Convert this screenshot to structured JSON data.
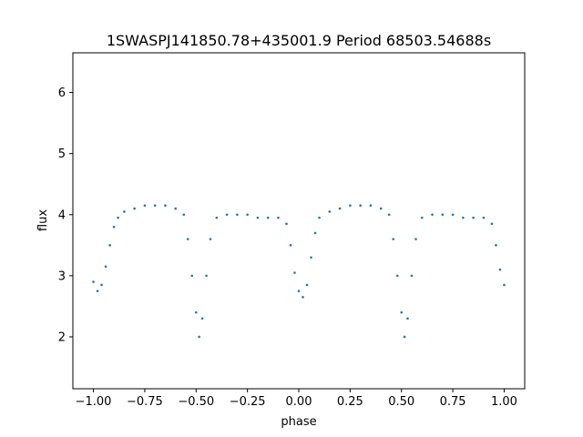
{
  "chart_data": {
    "type": "scatter",
    "title": "1SWASPJ141850.78+435001.9 Period 68503.54688s",
    "xlabel": "phase",
    "ylabel": "flux",
    "xlim": [
      -1.1,
      1.1
    ],
    "ylim": [
      1.15,
      6.65
    ],
    "x_ticks": [
      -1.0,
      -0.75,
      -0.5,
      -0.25,
      0.0,
      0.25,
      0.5,
      0.75,
      1.0
    ],
    "x_tick_labels": [
      "−1.00",
      "−0.75",
      "−0.50",
      "−0.25",
      "0.00",
      "0.25",
      "0.50",
      "0.75",
      "1.00"
    ],
    "y_ticks": [
      2,
      3,
      4,
      5,
      6
    ],
    "y_tick_labels": [
      "2",
      "3",
      "4",
      "5",
      "6"
    ],
    "grid": false,
    "legend": "none",
    "marker_color": "#1f77b4",
    "series": [
      {
        "points": [
          [
            -1.0,
            2.9
          ],
          [
            -0.98,
            2.75
          ],
          [
            -0.96,
            2.85
          ],
          [
            -0.94,
            3.15
          ],
          [
            -0.92,
            3.5
          ],
          [
            -0.9,
            3.8
          ],
          [
            -0.88,
            3.95
          ],
          [
            -0.85,
            4.05
          ],
          [
            -0.8,
            4.1
          ],
          [
            -0.75,
            4.15
          ],
          [
            -0.7,
            4.15
          ],
          [
            -0.65,
            4.15
          ],
          [
            -0.6,
            4.1
          ],
          [
            -0.56,
            4.0
          ],
          [
            -0.54,
            3.6
          ],
          [
            -0.52,
            3.0
          ],
          [
            -0.5,
            2.4
          ],
          [
            -0.485,
            2.0
          ],
          [
            -0.47,
            2.3
          ],
          [
            -0.45,
            3.0
          ],
          [
            -0.43,
            3.6
          ],
          [
            -0.4,
            3.95
          ],
          [
            -0.35,
            4.0
          ],
          [
            -0.3,
            4.0
          ],
          [
            -0.25,
            4.0
          ],
          [
            -0.2,
            3.95
          ],
          [
            -0.15,
            3.95
          ],
          [
            -0.1,
            3.95
          ],
          [
            -0.06,
            3.85
          ],
          [
            -0.04,
            3.5
          ],
          [
            -0.02,
            3.05
          ],
          [
            0.0,
            2.75
          ],
          [
            0.02,
            2.65
          ],
          [
            0.04,
            2.85
          ],
          [
            0.06,
            3.3
          ],
          [
            0.08,
            3.7
          ],
          [
            0.1,
            3.95
          ],
          [
            0.15,
            4.05
          ],
          [
            0.2,
            4.1
          ],
          [
            0.25,
            4.15
          ],
          [
            0.3,
            4.15
          ],
          [
            0.35,
            4.15
          ],
          [
            0.4,
            4.1
          ],
          [
            0.44,
            4.0
          ],
          [
            0.46,
            3.6
          ],
          [
            0.48,
            3.0
          ],
          [
            0.5,
            2.4
          ],
          [
            0.515,
            2.0
          ],
          [
            0.53,
            2.3
          ],
          [
            0.55,
            3.0
          ],
          [
            0.57,
            3.6
          ],
          [
            0.6,
            3.95
          ],
          [
            0.65,
            4.0
          ],
          [
            0.7,
            4.0
          ],
          [
            0.75,
            4.0
          ],
          [
            0.8,
            3.95
          ],
          [
            0.85,
            3.95
          ],
          [
            0.9,
            3.95
          ],
          [
            0.94,
            3.85
          ],
          [
            0.96,
            3.5
          ],
          [
            0.98,
            3.1
          ],
          [
            1.0,
            2.85
          ]
        ]
      }
    ]
  }
}
